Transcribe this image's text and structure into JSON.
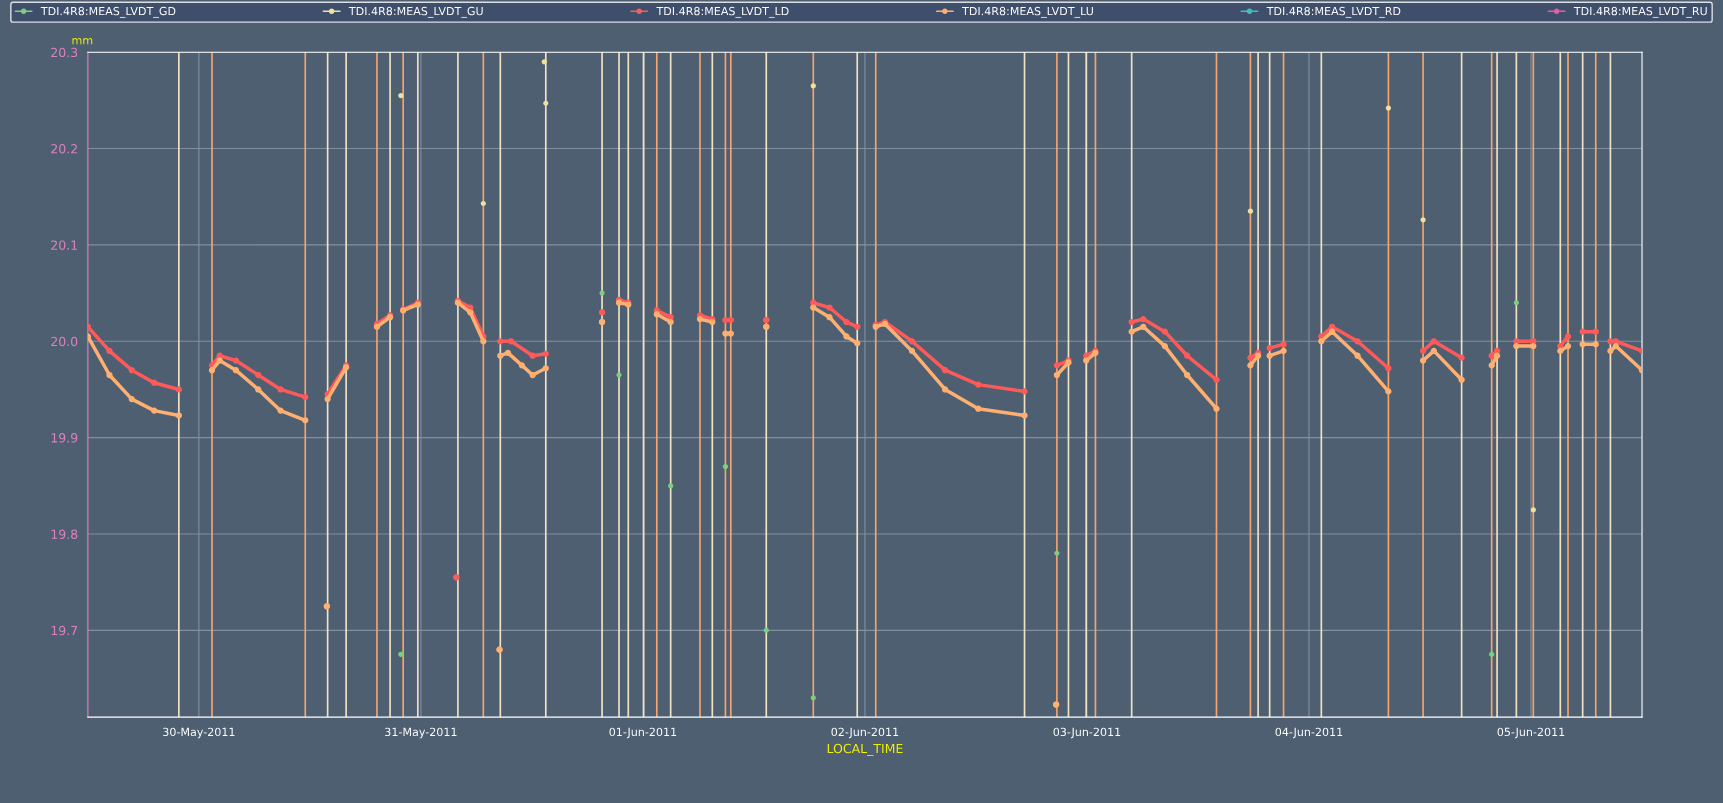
{
  "chart_data": {
    "type": "line",
    "ylabel": "mm",
    "xlabel": "LOCAL_TIME",
    "xlim": [
      "2011-05-29T12:00",
      "2011-06-05T12:00"
    ],
    "xticks": [
      {
        "value": "2011-05-30",
        "label": "30-May-2011"
      },
      {
        "value": "2011-05-31",
        "label": "31-May-2011"
      },
      {
        "value": "2011-06-01",
        "label": "01-Jun-2011"
      },
      {
        "value": "2011-06-02",
        "label": "02-Jun-2011"
      },
      {
        "value": "2011-06-03",
        "label": "03-Jun-2011"
      },
      {
        "value": "2011-06-04",
        "label": "04-Jun-2011"
      },
      {
        "value": "2011-06-05",
        "label": "05-Jun-2011"
      }
    ],
    "ylim": [
      19.61,
      20.3
    ],
    "yticks": [
      19.7,
      19.8,
      19.9,
      {
        "value": 20.0,
        "label": "20.0"
      },
      20.1,
      20.2,
      20.3
    ],
    "grid": true,
    "legend": "top",
    "marker": "circle",
    "series": [
      {
        "name": "TDI.4R8:MEAS_LVDT_GD",
        "type": "scatter",
        "color": "#7ccf7c",
        "x": [
          "2011-05-30T21:50",
          "2011-05-31T19:35",
          "2011-05-31T21:25",
          "2011-06-01T03:00",
          "2011-06-01T08:55",
          "2011-06-01T13:20",
          "2011-06-01T18:25",
          "2011-06-02T20:45",
          "2011-06-04T19:45",
          "2011-06-04T22:25"
        ],
        "values": [
          19.675,
          20.05,
          19.965,
          19.85,
          19.87,
          19.7,
          19.63,
          19.78,
          19.675,
          20.04
        ]
      },
      {
        "name": "TDI.4R8:MEAS_LVDT_GU",
        "type": "scatter",
        "color": "#f0e0a0",
        "x": [
          "2011-05-30T21:50",
          "2011-05-31T06:45",
          "2011-05-31T13:20",
          "2011-05-31T13:30",
          "2011-06-01T18:25",
          "2011-06-03T17:40",
          "2011-06-04T08:35",
          "2011-06-04T12:20",
          "2011-06-05T00:15"
        ],
        "values": [
          20.255,
          20.143,
          20.29,
          20.247,
          20.265,
          20.135,
          20.242,
          20.126,
          19.825
        ]
      },
      {
        "name": "TDI.4R8:MEAS_LVDT_LD",
        "color": "#ff5a5a",
        "x": [
          "2011-05-29T12:00",
          "2011-05-29T14:20",
          "2011-05-29T16:45",
          "2011-05-29T19:10",
          "2011-05-29T21:50",
          "2011-05-30T00:00",
          "2011-05-30T01:25",
          "2011-05-30T02:15",
          "2011-05-30T04:00",
          "2011-05-30T06:25",
          "2011-05-30T08:50",
          "2011-05-30T11:30",
          "2011-05-30T12:30",
          "2011-05-30T13:55",
          "2011-05-30T15:55",
          "2011-05-30T17:00",
          "2011-05-30T19:15",
          "2011-05-30T20:40",
          "2011-05-30T21:20",
          "2011-05-30T22:05",
          "2011-05-30T23:40",
          "2011-05-31T02:00",
          "2011-05-31T03:50",
          "2011-05-31T03:55",
          "2011-05-31T04:00",
          "2011-05-31T05:20",
          "2011-05-31T06:45",
          "2011-05-31T07:30",
          "2011-05-31T08:35",
          "2011-05-31T09:45",
          "2011-05-31T12:05",
          "2011-05-31T13:30",
          "2011-05-31T16:00",
          "2011-05-31T19:35",
          "2011-05-31T20:00",
          "2011-05-31T21:25",
          "2011-05-31T22:25",
          "2011-06-01T00:30",
          "2011-06-01T01:30",
          "2011-06-01T03:00",
          "2011-06-01T04:30",
          "2011-06-01T06:10",
          "2011-06-01T07:30",
          "2011-06-01T08:00",
          "2011-06-01T08:55",
          "2011-06-01T09:30",
          "2011-06-01T11:00",
          "2011-06-01T13:20",
          "2011-06-01T15:00",
          "2011-06-01T18:25",
          "2011-06-01T20:10",
          "2011-06-01T22:00",
          "2011-06-01T23:10",
          "2011-06-02T00:00",
          "2011-06-02T01:10",
          "2011-06-02T02:10",
          "2011-06-02T05:05",
          "2011-06-02T08:40",
          "2011-06-02T12:15",
          "2011-06-02T17:15",
          "2011-06-02T19:00",
          "2011-06-02T20:45",
          "2011-06-02T22:00",
          "2011-06-02T23:00",
          "2011-06-02T23:55",
          "2011-06-03T00:55",
          "2011-06-03T03:00",
          "2011-06-03T04:50",
          "2011-06-03T06:05",
          "2011-06-03T08:25",
          "2011-06-03T10:50",
          "2011-06-03T14:00",
          "2011-06-03T16:00",
          "2011-06-03T17:40",
          "2011-06-03T18:30",
          "2011-06-03T19:00",
          "2011-06-03T19:45",
          "2011-06-03T21:15",
          "2011-06-04T00:00",
          "2011-06-04T01:20",
          "2011-06-04T02:30",
          "2011-06-04T05:15",
          "2011-06-04T08:35",
          "2011-06-04T10:00",
          "2011-06-04T12:20",
          "2011-06-04T13:30",
          "2011-06-04T16:30",
          "2011-06-04T18:00",
          "2011-06-04T19:45",
          "2011-06-04T20:20",
          "2011-06-04T21:00",
          "2011-06-04T22:25",
          "2011-06-05T00:15",
          "2011-06-05T01:00",
          "2011-06-05T03:10",
          "2011-06-05T04:00",
          "2011-06-05T05:00",
          "2011-06-05T05:35",
          "2011-06-05T07:00",
          "2011-06-05T08:00",
          "2011-06-05T08:35",
          "2011-06-05T09:10",
          "2011-06-05T12:00"
        ],
        "values": [
          20.015,
          19.99,
          19.97,
          19.957,
          19.95,
          null,
          19.975,
          19.985,
          19.98,
          19.965,
          19.95,
          19.942,
          null,
          19.945,
          19.975,
          null,
          20.018,
          20.027,
          null,
          20.033,
          20.04,
          null,
          19.755,
          null,
          20.042,
          20.035,
          20.005,
          null,
          20.0,
          20.0,
          19.985,
          19.987,
          null,
          20.03,
          null,
          20.043,
          20.04,
          null,
          20.032,
          20.025,
          null,
          20.027,
          20.023,
          null,
          20.022,
          20.022,
          null,
          20.022,
          null,
          20.04,
          20.035,
          20.02,
          20.015,
          null,
          20.017,
          20.02,
          20.0,
          19.97,
          19.955,
          19.948,
          null,
          19.975,
          19.98,
          null,
          19.985,
          19.99,
          null,
          20.02,
          20.023,
          20.01,
          19.985,
          19.96,
          null,
          19.983,
          19.988,
          null,
          19.993,
          19.997,
          null,
          20.005,
          20.015,
          20.0,
          19.972,
          null,
          19.99,
          20.0,
          19.983,
          null,
          19.985,
          19.99,
          null,
          20.0,
          20.0,
          null,
          19.995,
          20.005,
          null,
          20.01,
          20.01,
          null,
          20.0,
          20.0,
          19.99
        ]
      },
      {
        "name": "TDI.4R8:MEAS_LVDT_LU",
        "color": "#ffb070",
        "x": [
          "2011-05-29T12:00",
          "2011-05-29T14:20",
          "2011-05-29T16:45",
          "2011-05-29T19:10",
          "2011-05-29T21:50",
          "2011-05-30T00:00",
          "2011-05-30T01:25",
          "2011-05-30T02:15",
          "2011-05-30T04:00",
          "2011-05-30T06:25",
          "2011-05-30T08:50",
          "2011-05-30T11:30",
          "2011-05-30T12:30",
          "2011-05-30T13:50",
          "2011-05-30T13:52",
          "2011-05-30T13:55",
          "2011-05-30T15:55",
          "2011-05-30T17:00",
          "2011-05-30T19:15",
          "2011-05-30T20:40",
          "2011-05-30T21:20",
          "2011-05-30T22:05",
          "2011-05-30T23:40",
          "2011-05-31T02:00",
          "2011-05-31T04:00",
          "2011-05-31T05:20",
          "2011-05-31T06:45",
          "2011-05-31T07:30",
          "2011-05-31T08:30",
          "2011-05-31T08:32",
          "2011-05-31T08:35",
          "2011-05-31T09:25",
          "2011-05-31T10:55",
          "2011-05-31T12:05",
          "2011-05-31T13:30",
          "2011-05-31T16:00",
          "2011-05-31T19:35",
          "2011-05-31T20:00",
          "2011-05-31T21:25",
          "2011-05-31T22:25",
          "2011-06-01T00:30",
          "2011-06-01T01:30",
          "2011-06-01T03:00",
          "2011-06-01T04:30",
          "2011-06-01T06:10",
          "2011-06-01T07:30",
          "2011-06-01T08:00",
          "2011-06-01T08:55",
          "2011-06-01T09:30",
          "2011-06-01T11:00",
          "2011-06-01T13:20",
          "2011-06-01T15:00",
          "2011-06-01T18:25",
          "2011-06-01T20:10",
          "2011-06-01T22:00",
          "2011-06-01T23:10",
          "2011-06-02T00:00",
          "2011-06-02T01:10",
          "2011-06-02T02:10",
          "2011-06-02T05:05",
          "2011-06-02T08:40",
          "2011-06-02T12:15",
          "2011-06-02T17:15",
          "2011-06-02T19:00",
          "2011-06-02T20:40",
          "2011-06-02T20:42",
          "2011-06-02T20:45",
          "2011-06-02T22:00",
          "2011-06-02T23:00",
          "2011-06-02T23:55",
          "2011-06-03T00:55",
          "2011-06-03T03:00",
          "2011-06-03T04:50",
          "2011-06-03T06:05",
          "2011-06-03T08:25",
          "2011-06-03T10:50",
          "2011-06-03T14:00",
          "2011-06-03T16:00",
          "2011-06-03T17:40",
          "2011-06-03T18:30",
          "2011-06-03T19:00",
          "2011-06-03T19:45",
          "2011-06-03T21:15",
          "2011-06-04T00:00",
          "2011-06-04T01:20",
          "2011-06-04T02:30",
          "2011-06-04T05:15",
          "2011-06-04T08:35",
          "2011-06-04T10:00",
          "2011-06-04T12:20",
          "2011-06-04T13:30",
          "2011-06-04T16:30",
          "2011-06-04T18:00",
          "2011-06-04T19:45",
          "2011-06-04T20:20",
          "2011-06-04T21:00",
          "2011-06-04T22:25",
          "2011-06-05T00:15",
          "2011-06-05T01:00",
          "2011-06-05T03:10",
          "2011-06-05T04:00",
          "2011-06-05T05:00",
          "2011-06-05T05:35",
          "2011-06-05T07:00",
          "2011-06-05T08:00",
          "2011-06-05T08:35",
          "2011-06-05T09:10",
          "2011-06-05T12:00"
        ],
        "values": [
          20.005,
          19.965,
          19.94,
          19.928,
          19.923,
          null,
          19.97,
          19.98,
          19.97,
          19.95,
          19.928,
          19.918,
          null,
          19.725,
          null,
          19.94,
          19.973,
          null,
          20.015,
          20.025,
          null,
          20.032,
          20.038,
          null,
          20.04,
          20.03,
          20.0,
          null,
          19.68,
          null,
          19.985,
          19.988,
          19.975,
          19.965,
          19.972,
          null,
          20.02,
          null,
          20.04,
          20.038,
          null,
          20.028,
          20.02,
          null,
          20.023,
          20.02,
          null,
          20.008,
          20.008,
          null,
          20.015,
          null,
          20.035,
          20.025,
          20.005,
          19.998,
          null,
          20.015,
          20.018,
          19.99,
          19.95,
          19.93,
          19.923,
          null,
          19.623,
          null,
          19.965,
          19.978,
          null,
          19.98,
          19.988,
          null,
          20.01,
          20.015,
          19.995,
          19.965,
          19.93,
          null,
          19.975,
          19.985,
          null,
          19.985,
          19.99,
          null,
          20.0,
          20.01,
          19.985,
          19.948,
          null,
          19.98,
          19.99,
          19.96,
          null,
          19.975,
          19.985,
          null,
          19.995,
          19.995,
          null,
          19.99,
          19.995,
          null,
          19.997,
          19.997,
          null,
          19.99,
          19.995,
          19.97
        ]
      },
      {
        "name": "TDI.4R8:MEAS_LVDT_RD",
        "color": "#40c0c0"
      },
      {
        "name": "TDI.4R8:MEAS_LVDT_RU",
        "color": "#e060a0"
      }
    ],
    "ref_lines": [
      {
        "axis": "x",
        "value": "2011-05-29T21:50",
        "color": "#f2e2c4"
      },
      {
        "axis": "x",
        "value": "2011-05-30T01:25",
        "color": "#f4a46c"
      },
      {
        "axis": "x",
        "value": "2011-05-30T11:30",
        "color": "#f4a46c"
      },
      {
        "axis": "x",
        "value": "2011-05-30T13:55",
        "color": "#f2e2c4"
      },
      {
        "axis": "x",
        "value": "2011-05-30T15:55",
        "color": "#f2e2c4"
      },
      {
        "axis": "x",
        "value": "2011-05-30T19:15",
        "color": "#f4a46c"
      },
      {
        "axis": "x",
        "value": "2011-05-30T20:40",
        "color": "#f2e2c4"
      },
      {
        "axis": "x",
        "value": "2011-05-30T22:05",
        "color": "#f4a46c"
      },
      {
        "axis": "x",
        "value": "2011-05-30T23:40",
        "color": "#f2e2c4"
      },
      {
        "axis": "x",
        "value": "2011-05-31T04:00",
        "color": "#f2e2c4"
      },
      {
        "axis": "x",
        "value": "2011-05-31T06:45",
        "color": "#f4a46c"
      },
      {
        "axis": "x",
        "value": "2011-05-31T08:35",
        "color": "#f2e2c4"
      },
      {
        "axis": "x",
        "value": "2011-05-31T13:30",
        "color": "#f2e2c4"
      },
      {
        "axis": "x",
        "value": "2011-05-31T19:35",
        "color": "#f2e2c4"
      },
      {
        "axis": "x",
        "value": "2011-05-31T21:25",
        "color": "#f2e2c4"
      },
      {
        "axis": "x",
        "value": "2011-05-31T22:25",
        "color": "#f2e2c4"
      },
      {
        "axis": "x",
        "value": "2011-06-01T00:05",
        "color": "#f2e2c4"
      },
      {
        "axis": "x",
        "value": "2011-06-01T01:30",
        "color": "#f4a46c"
      },
      {
        "axis": "x",
        "value": "2011-06-01T03:00",
        "color": "#f2e2c4"
      },
      {
        "axis": "x",
        "value": "2011-06-01T06:10",
        "color": "#f4a46c"
      },
      {
        "axis": "x",
        "value": "2011-06-01T07:30",
        "color": "#f2e2c4"
      },
      {
        "axis": "x",
        "value": "2011-06-01T08:55",
        "color": "#f4a46c"
      },
      {
        "axis": "x",
        "value": "2011-06-01T09:30",
        "color": "#f4a46c"
      },
      {
        "axis": "x",
        "value": "2011-06-01T13:20",
        "color": "#f2e2c4"
      },
      {
        "axis": "x",
        "value": "2011-06-01T18:25",
        "color": "#f4a46c"
      },
      {
        "axis": "x",
        "value": "2011-06-01T23:10",
        "color": "#f2e2c4"
      },
      {
        "axis": "x",
        "value": "2011-06-02T01:10",
        "color": "#f4a46c"
      },
      {
        "axis": "x",
        "value": "2011-06-02T17:15",
        "color": "#f2e2c4"
      },
      {
        "axis": "x",
        "value": "2011-06-02T20:45",
        "color": "#f4a46c"
      },
      {
        "axis": "x",
        "value": "2011-06-02T22:00",
        "color": "#f2e2c4"
      },
      {
        "axis": "x",
        "value": "2011-06-02T23:55",
        "color": "#f2e2c4"
      },
      {
        "axis": "x",
        "value": "2011-06-03T00:55",
        "color": "#f4a46c"
      },
      {
        "axis": "x",
        "value": "2011-06-03T04:50",
        "color": "#f2e2c4"
      },
      {
        "axis": "x",
        "value": "2011-06-03T14:00",
        "color": "#f4a46c"
      },
      {
        "axis": "x",
        "value": "2011-06-03T17:40",
        "color": "#f4a46c"
      },
      {
        "axis": "x",
        "value": "2011-06-03T18:30",
        "color": "#f2e2c4"
      },
      {
        "axis": "x",
        "value": "2011-06-03T19:45",
        "color": "#f2e2c4"
      },
      {
        "axis": "x",
        "value": "2011-06-03T21:15",
        "color": "#f4a46c"
      },
      {
        "axis": "x",
        "value": "2011-06-04T01:20",
        "color": "#f2e2c4"
      },
      {
        "axis": "x",
        "value": "2011-06-04T08:35",
        "color": "#f4a46c"
      },
      {
        "axis": "x",
        "value": "2011-06-04T12:20",
        "color": "#f4a46c"
      },
      {
        "axis": "x",
        "value": "2011-06-04T16:30",
        "color": "#f2e2c4"
      },
      {
        "axis": "x",
        "value": "2011-06-04T19:45",
        "color": "#f4a46c"
      },
      {
        "axis": "x",
        "value": "2011-06-04T20:20",
        "color": "#f2e2c4"
      },
      {
        "axis": "x",
        "value": "2011-06-04T22:25",
        "color": "#f2e2c4"
      },
      {
        "axis": "x",
        "value": "2011-06-05T00:15",
        "color": "#f4a46c"
      },
      {
        "axis": "x",
        "value": "2011-06-05T03:10",
        "color": "#f2e2c4"
      },
      {
        "axis": "x",
        "value": "2011-06-05T04:00",
        "color": "#f4a46c"
      },
      {
        "axis": "x",
        "value": "2011-06-05T05:35",
        "color": "#f2e2c4"
      },
      {
        "axis": "x",
        "value": "2011-06-05T07:00",
        "color": "#f4a46c"
      },
      {
        "axis": "x",
        "value": "2011-06-05T08:35",
        "color": "#f2e2c4"
      }
    ]
  }
}
